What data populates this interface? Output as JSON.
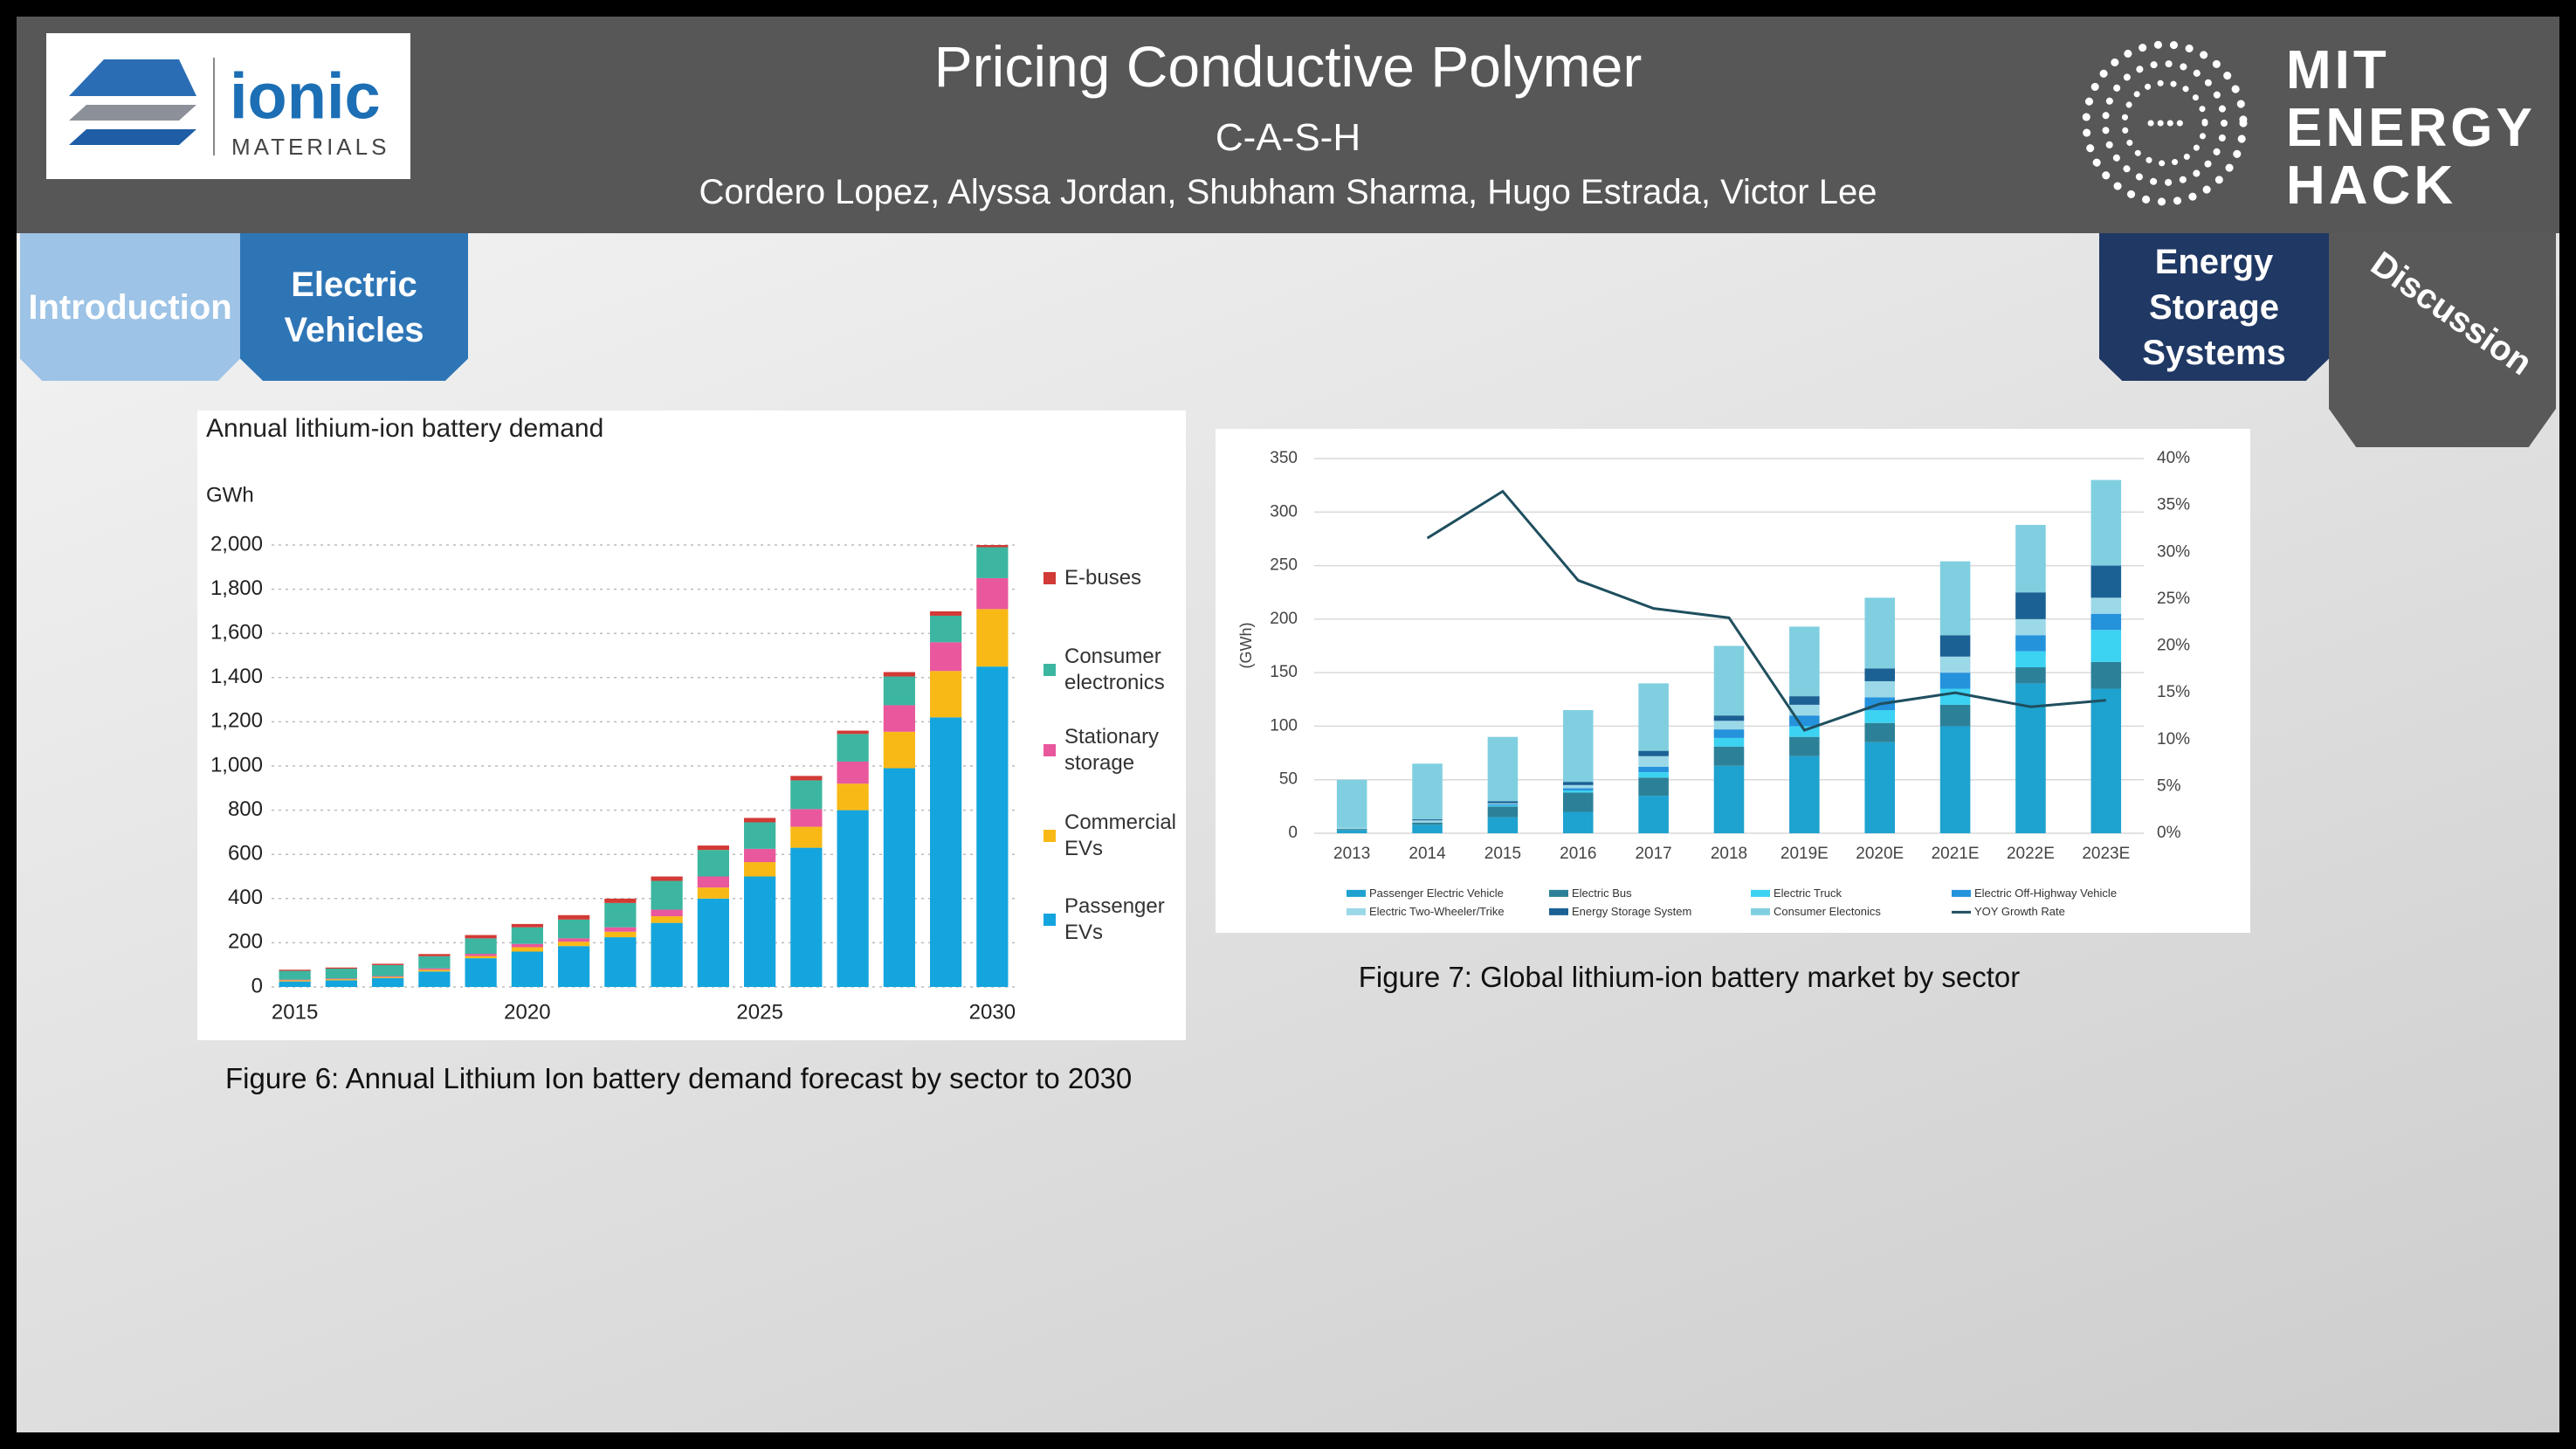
{
  "header": {
    "title": "Pricing Conductive Polymer",
    "team": "C-A-S-H",
    "authors": "Cordero Lopez, Alyssa Jordan, Shubham Sharma, Hugo Estrada, Victor Lee"
  },
  "logo": {
    "name": "ionic",
    "sub": "MATERIALS"
  },
  "brand": {
    "lines": [
      "MIT",
      "ENERGY",
      "HACK"
    ]
  },
  "tabs": [
    "Introduction",
    "Electric Vehicles",
    "Energy Storage Systems",
    "Discussion"
  ],
  "captions": [
    "Figure 6: Annual Lithium Ion battery demand forecast by sector to 2030",
    "Figure 7: Global lithium-ion battery market by sector"
  ],
  "chart_data": [
    {
      "type": "bar",
      "stacked": true,
      "title": "Annual lithium-ion battery demand",
      "y_label": "GWh",
      "grid": true,
      "categories": [
        "2015",
        null,
        null,
        null,
        null,
        "2020",
        null,
        null,
        null,
        null,
        "2025",
        null,
        null,
        null,
        null,
        "2030"
      ],
      "ylim": [
        0,
        2000
      ],
      "yticks": [
        0,
        200,
        400,
        600,
        800,
        {
          "value": 1000,
          "label": "1,000"
        },
        {
          "value": 1200,
          "label": "1,200"
        },
        {
          "value": 1400,
          "label": "1,400"
        },
        {
          "value": 1600,
          "label": "1,600"
        },
        {
          "value": 1800,
          "label": "1,800"
        },
        {
          "value": 2000,
          "label": "2,000"
        }
      ],
      "series": [
        {
          "name": "Passenger EVs",
          "color": "#14a5de",
          "values": [
            25,
            30,
            40,
            70,
            130,
            160,
            185,
            225,
            290,
            400,
            500,
            630,
            800,
            990,
            1220,
            1450
          ]
        },
        {
          "name": "Commercial EVs",
          "color": "#f8b916",
          "values": [
            5,
            5,
            5,
            8,
            10,
            20,
            20,
            25,
            30,
            50,
            65,
            95,
            120,
            165,
            210,
            260
          ]
        },
        {
          "name": "Stationary storage",
          "color": "#e9579c",
          "values": [
            3,
            3,
            4,
            6,
            10,
            15,
            15,
            20,
            30,
            50,
            60,
            80,
            100,
            120,
            130,
            140
          ]
        },
        {
          "name": "Consumer electronics",
          "color": "#3cb6a0",
          "values": [
            40,
            45,
            50,
            55,
            70,
            75,
            85,
            110,
            130,
            120,
            120,
            130,
            125,
            130,
            120,
            140
          ]
        },
        {
          "name": "E-buses",
          "color": "#d23a36",
          "values": [
            5,
            5,
            6,
            10,
            15,
            15,
            20,
            20,
            20,
            20,
            20,
            20,
            15,
            20,
            20,
            10
          ]
        }
      ]
    },
    {
      "type": "bar",
      "stacked": true,
      "y_label": "(GWh)",
      "grid": true,
      "categories": [
        "2013",
        "2014",
        "2015",
        "2016",
        "2017",
        "2018",
        "2019E",
        "2020E",
        "2021E",
        "2022E",
        "2023E"
      ],
      "ylim": [
        0,
        350
      ],
      "yticks": [
        0,
        50,
        100,
        150,
        200,
        250,
        300,
        350
      ],
      "y2lim": [
        0,
        40
      ],
      "y2ticks": [
        {
          "value": 0,
          "label": "0%"
        },
        {
          "value": 5,
          "label": "5%"
        },
        {
          "value": 10,
          "label": "10%"
        },
        {
          "value": 15,
          "label": "15%"
        },
        {
          "value": 20,
          "label": "20%"
        },
        {
          "value": 25,
          "label": "25%"
        },
        {
          "value": 30,
          "label": "30%"
        },
        {
          "value": 35,
          "label": "35%"
        },
        {
          "value": 40,
          "label": "40%"
        }
      ],
      "series": [
        {
          "name": "Passenger Electric Vehicle",
          "color": "#1ea2cf",
          "values": [
            3,
            8,
            15,
            20,
            35,
            63,
            72,
            85,
            100,
            140,
            135
          ]
        },
        {
          "name": "Electric Bus",
          "color": "#2c8198",
          "values": [
            1,
            2,
            10,
            18,
            17,
            18,
            18,
            18,
            20,
            15,
            25
          ]
        },
        {
          "name": "Electric Truck",
          "color": "#3cd2f2",
          "values": [
            0,
            0,
            1,
            2,
            5,
            8,
            10,
            12,
            15,
            15,
            30
          ]
        },
        {
          "name": "Electric Off-Highway Vehicle",
          "color": "#2592dc",
          "values": [
            0,
            0,
            1,
            2,
            5,
            8,
            10,
            12,
            15,
            15,
            15
          ]
        },
        {
          "name": "Electric Two-Wheeler/Trike",
          "color": "#9bd8e8",
          "values": [
            1,
            2,
            1,
            3,
            10,
            8,
            10,
            15,
            15,
            15,
            15
          ]
        },
        {
          "name": "Energy Storage System",
          "color": "#1b6194",
          "values": [
            0,
            1,
            2,
            3,
            5,
            5,
            8,
            12,
            20,
            25,
            30
          ]
        },
        {
          "name": "Consumer Electonics",
          "color": "#80cfe0",
          "values": [
            45,
            52,
            60,
            67,
            63,
            65,
            65,
            66,
            69,
            63,
            80
          ]
        },
        {
          "name": "YOY Growth Rate",
          "color": "#1f4f5f",
          "type": "line",
          "axis": "y2",
          "values": [
            null,
            31.5,
            36.5,
            27,
            24,
            23,
            11,
            13.8,
            15,
            13.5,
            14.2
          ]
        }
      ]
    }
  ]
}
